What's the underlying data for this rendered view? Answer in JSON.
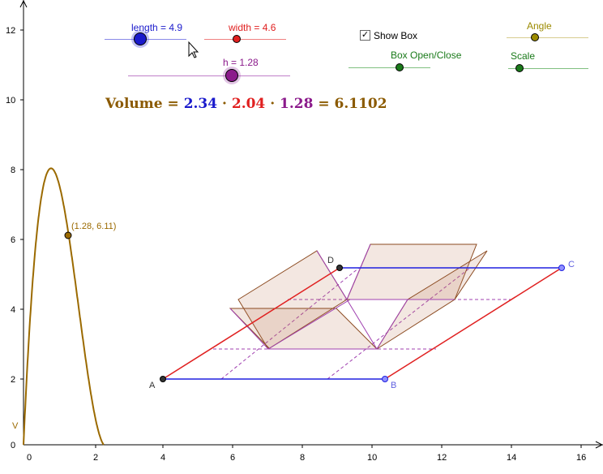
{
  "sliders": {
    "length": {
      "label": "length = 4.9",
      "value": 4.9,
      "color": "#1a1acc"
    },
    "width": {
      "label": "width = 4.6",
      "value": 4.6,
      "color": "#e02020"
    },
    "h": {
      "label": "h = 1.28",
      "value": 1.28,
      "color": "#8b1a8b"
    },
    "angle": {
      "label": "Angle",
      "color": "#9b8a00"
    },
    "box_open": {
      "label": "Box Open/Close",
      "color": "#1a7a1a"
    },
    "scale": {
      "label": "Scale",
      "color": "#1a7a1a"
    }
  },
  "checkbox": {
    "label": "Show Box",
    "checked": true,
    "mark": "✓"
  },
  "volume": {
    "label": "Volume",
    "eq": "=",
    "dot": "·",
    "length": "2.34",
    "width": "2.04",
    "height": "1.28",
    "result": "6.1102",
    "colors": {
      "label": "#8b5a00",
      "length": "#1a1acc",
      "width": "#e02020",
      "height": "#8b1a8b"
    }
  },
  "graph": {
    "x_ticks": [
      "0",
      "2",
      "4",
      "6",
      "8",
      "10",
      "12",
      "14",
      "16"
    ],
    "y_ticks": [
      "0",
      "2",
      "4",
      "6",
      "8",
      "10",
      "12"
    ],
    "y_axis_label": "V",
    "point_label": "(1.28, 6.11)",
    "curve_color": "#9b6a00"
  },
  "points": {
    "A": "A",
    "B": "B",
    "C": "C",
    "D": "D"
  }
}
